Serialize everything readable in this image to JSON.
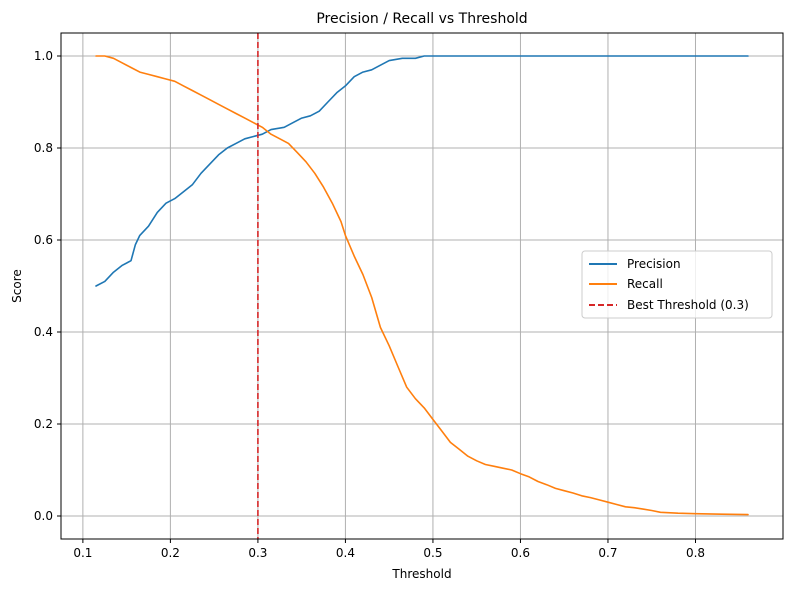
{
  "chart_data": {
    "type": "line",
    "title": "Precision / Recall vs Threshold",
    "xlabel": "Threshold",
    "ylabel": "Score",
    "xlim": [
      0.075,
      0.9
    ],
    "ylim": [
      -0.05,
      1.05
    ],
    "xticks": [
      0.1,
      0.2,
      0.3,
      0.4,
      0.5,
      0.6,
      0.7,
      0.8
    ],
    "xtick_labels": [
      "0.1",
      "0.2",
      "0.3",
      "0.4",
      "0.5",
      "0.6",
      "0.7",
      "0.8"
    ],
    "yticks": [
      0.0,
      0.2,
      0.4,
      0.6,
      0.8,
      1.0
    ],
    "ytick_labels": [
      "0.0",
      "0.2",
      "0.4",
      "0.6",
      "0.8",
      "1.0"
    ],
    "grid": true,
    "legend_position": "center-right",
    "series": [
      {
        "name": "Precision",
        "color": "#1f77b4",
        "style": "solid",
        "points": [
          [
            0.115,
            0.5
          ],
          [
            0.125,
            0.51
          ],
          [
            0.135,
            0.53
          ],
          [
            0.145,
            0.545
          ],
          [
            0.155,
            0.555
          ],
          [
            0.16,
            0.59
          ],
          [
            0.165,
            0.61
          ],
          [
            0.175,
            0.63
          ],
          [
            0.185,
            0.66
          ],
          [
            0.195,
            0.68
          ],
          [
            0.205,
            0.69
          ],
          [
            0.215,
            0.705
          ],
          [
            0.225,
            0.72
          ],
          [
            0.235,
            0.745
          ],
          [
            0.245,
            0.765
          ],
          [
            0.255,
            0.785
          ],
          [
            0.265,
            0.8
          ],
          [
            0.275,
            0.81
          ],
          [
            0.285,
            0.82
          ],
          [
            0.295,
            0.825
          ],
          [
            0.305,
            0.83
          ],
          [
            0.315,
            0.84
          ],
          [
            0.33,
            0.845
          ],
          [
            0.34,
            0.855
          ],
          [
            0.35,
            0.865
          ],
          [
            0.36,
            0.87
          ],
          [
            0.37,
            0.88
          ],
          [
            0.38,
            0.9
          ],
          [
            0.39,
            0.92
          ],
          [
            0.4,
            0.935
          ],
          [
            0.41,
            0.955
          ],
          [
            0.42,
            0.965
          ],
          [
            0.43,
            0.97
          ],
          [
            0.44,
            0.98
          ],
          [
            0.45,
            0.99
          ],
          [
            0.465,
            0.995
          ],
          [
            0.48,
            0.995
          ],
          [
            0.49,
            1.0
          ],
          [
            0.6,
            1.0
          ],
          [
            0.7,
            1.0
          ],
          [
            0.8,
            1.0
          ],
          [
            0.86,
            1.0
          ]
        ]
      },
      {
        "name": "Recall",
        "color": "#ff7f0e",
        "style": "solid",
        "points": [
          [
            0.115,
            1.0
          ],
          [
            0.125,
            1.0
          ],
          [
            0.135,
            0.995
          ],
          [
            0.145,
            0.985
          ],
          [
            0.155,
            0.975
          ],
          [
            0.165,
            0.965
          ],
          [
            0.175,
            0.96
          ],
          [
            0.185,
            0.955
          ],
          [
            0.195,
            0.95
          ],
          [
            0.205,
            0.945
          ],
          [
            0.215,
            0.935
          ],
          [
            0.225,
            0.925
          ],
          [
            0.235,
            0.915
          ],
          [
            0.245,
            0.905
          ],
          [
            0.255,
            0.895
          ],
          [
            0.265,
            0.885
          ],
          [
            0.275,
            0.875
          ],
          [
            0.285,
            0.865
          ],
          [
            0.295,
            0.855
          ],
          [
            0.305,
            0.845
          ],
          [
            0.315,
            0.83
          ],
          [
            0.325,
            0.82
          ],
          [
            0.335,
            0.81
          ],
          [
            0.345,
            0.79
          ],
          [
            0.355,
            0.77
          ],
          [
            0.365,
            0.745
          ],
          [
            0.375,
            0.715
          ],
          [
            0.385,
            0.68
          ],
          [
            0.395,
            0.64
          ],
          [
            0.4,
            0.61
          ],
          [
            0.41,
            0.565
          ],
          [
            0.42,
            0.525
          ],
          [
            0.43,
            0.475
          ],
          [
            0.44,
            0.41
          ],
          [
            0.45,
            0.37
          ],
          [
            0.46,
            0.325
          ],
          [
            0.47,
            0.28
          ],
          [
            0.48,
            0.255
          ],
          [
            0.49,
            0.235
          ],
          [
            0.5,
            0.21
          ],
          [
            0.51,
            0.185
          ],
          [
            0.52,
            0.16
          ],
          [
            0.53,
            0.145
          ],
          [
            0.54,
            0.13
          ],
          [
            0.55,
            0.12
          ],
          [
            0.56,
            0.112
          ],
          [
            0.57,
            0.108
          ],
          [
            0.58,
            0.104
          ],
          [
            0.59,
            0.1
          ],
          [
            0.6,
            0.092
          ],
          [
            0.61,
            0.085
          ],
          [
            0.62,
            0.075
          ],
          [
            0.63,
            0.068
          ],
          [
            0.64,
            0.06
          ],
          [
            0.65,
            0.055
          ],
          [
            0.66,
            0.05
          ],
          [
            0.67,
            0.044
          ],
          [
            0.68,
            0.04
          ],
          [
            0.69,
            0.035
          ],
          [
            0.7,
            0.03
          ],
          [
            0.71,
            0.025
          ],
          [
            0.72,
            0.02
          ],
          [
            0.73,
            0.018
          ],
          [
            0.74,
            0.015
          ],
          [
            0.75,
            0.012
          ],
          [
            0.76,
            0.008
          ],
          [
            0.78,
            0.006
          ],
          [
            0.8,
            0.005
          ],
          [
            0.83,
            0.004
          ],
          [
            0.86,
            0.003
          ]
        ]
      }
    ],
    "vlines": [
      {
        "name": "Best Threshold (0.3)",
        "x": 0.3,
        "color": "#d62728",
        "style": "dashed"
      }
    ]
  }
}
